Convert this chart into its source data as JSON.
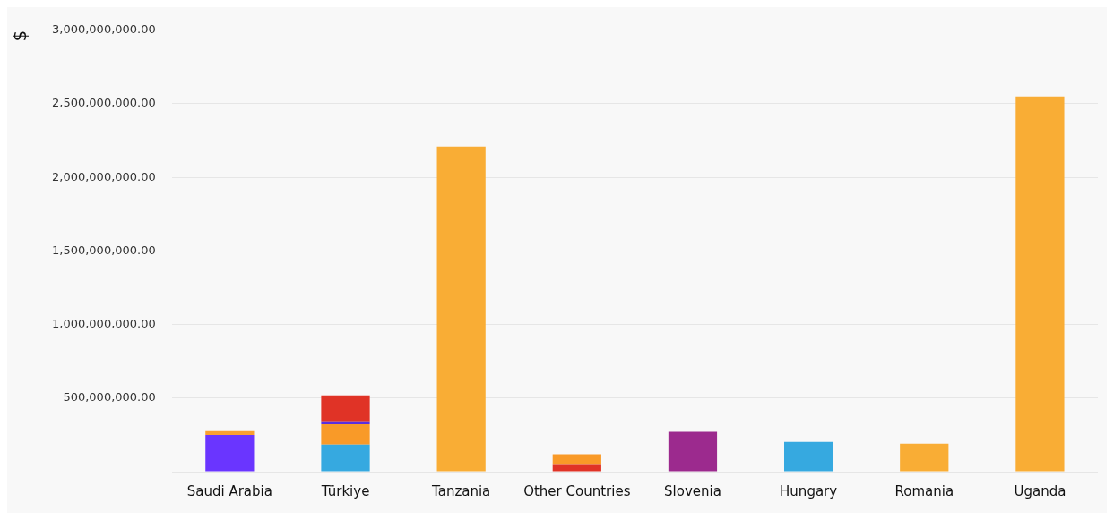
{
  "chart_data": {
    "type": "bar",
    "stacked": true,
    "ylabel": "$",
    "categories": [
      "Saudi Arabia",
      "Türkiye",
      "Tanzania",
      "Other Countries",
      "Slovenia",
      "Hungary",
      "Romania",
      "Uganda"
    ],
    "series": [
      {
        "colors": [
          "#6a35ff",
          "#36a9e0",
          "#f9ad35",
          "#e03326",
          "#9c2a8e",
          "#36a9e0",
          "#f9ad35",
          "#f9ad35"
        ],
        "values": [
          250000000,
          184000000,
          2210000000,
          52000000,
          270000000,
          203000000,
          190000000,
          2550000000
        ]
      },
      {
        "colors": [
          "#f9a030",
          "#f99a28",
          "#f99a28",
          "#f99a28",
          "#f99a28",
          "#f99a28",
          "#f99a28",
          "#f99a28"
        ],
        "values": [
          25000000,
          138000000,
          null,
          66000000,
          null,
          null,
          null,
          null
        ]
      },
      {
        "colors": [
          "#5a2ee0",
          "#5a2ee0",
          "#5a2ee0",
          "#5a2ee0",
          "#5a2ee0",
          "#5a2ee0",
          "#5a2ee0",
          "#5a2ee0"
        ],
        "values": [
          null,
          20000000,
          null,
          null,
          null,
          null,
          null,
          null
        ]
      },
      {
        "colors": [
          "#e03326",
          "#e03326",
          "#e03326",
          "#e03326",
          "#e03326",
          "#e03326",
          "#e03326",
          "#e03326"
        ],
        "values": [
          null,
          177000000,
          null,
          null,
          null,
          null,
          null,
          null
        ]
      }
    ],
    "ylim": [
      0,
      3000000000
    ],
    "yticks": [
      {
        "value": 0,
        "label": null
      },
      {
        "value": 500000000,
        "label": "500,000,000.00"
      },
      {
        "value": 1000000000,
        "label": "1,000,000,000.00"
      },
      {
        "value": 1500000000,
        "label": "1,500,000,000.00"
      },
      {
        "value": 2000000000,
        "label": "2,000,000,000.00"
      },
      {
        "value": 2500000000,
        "label": "2,500,000,000.00"
      },
      {
        "value": 3000000000,
        "label": "3,000,000,000.00"
      }
    ],
    "grid": "y",
    "legend": false
  }
}
